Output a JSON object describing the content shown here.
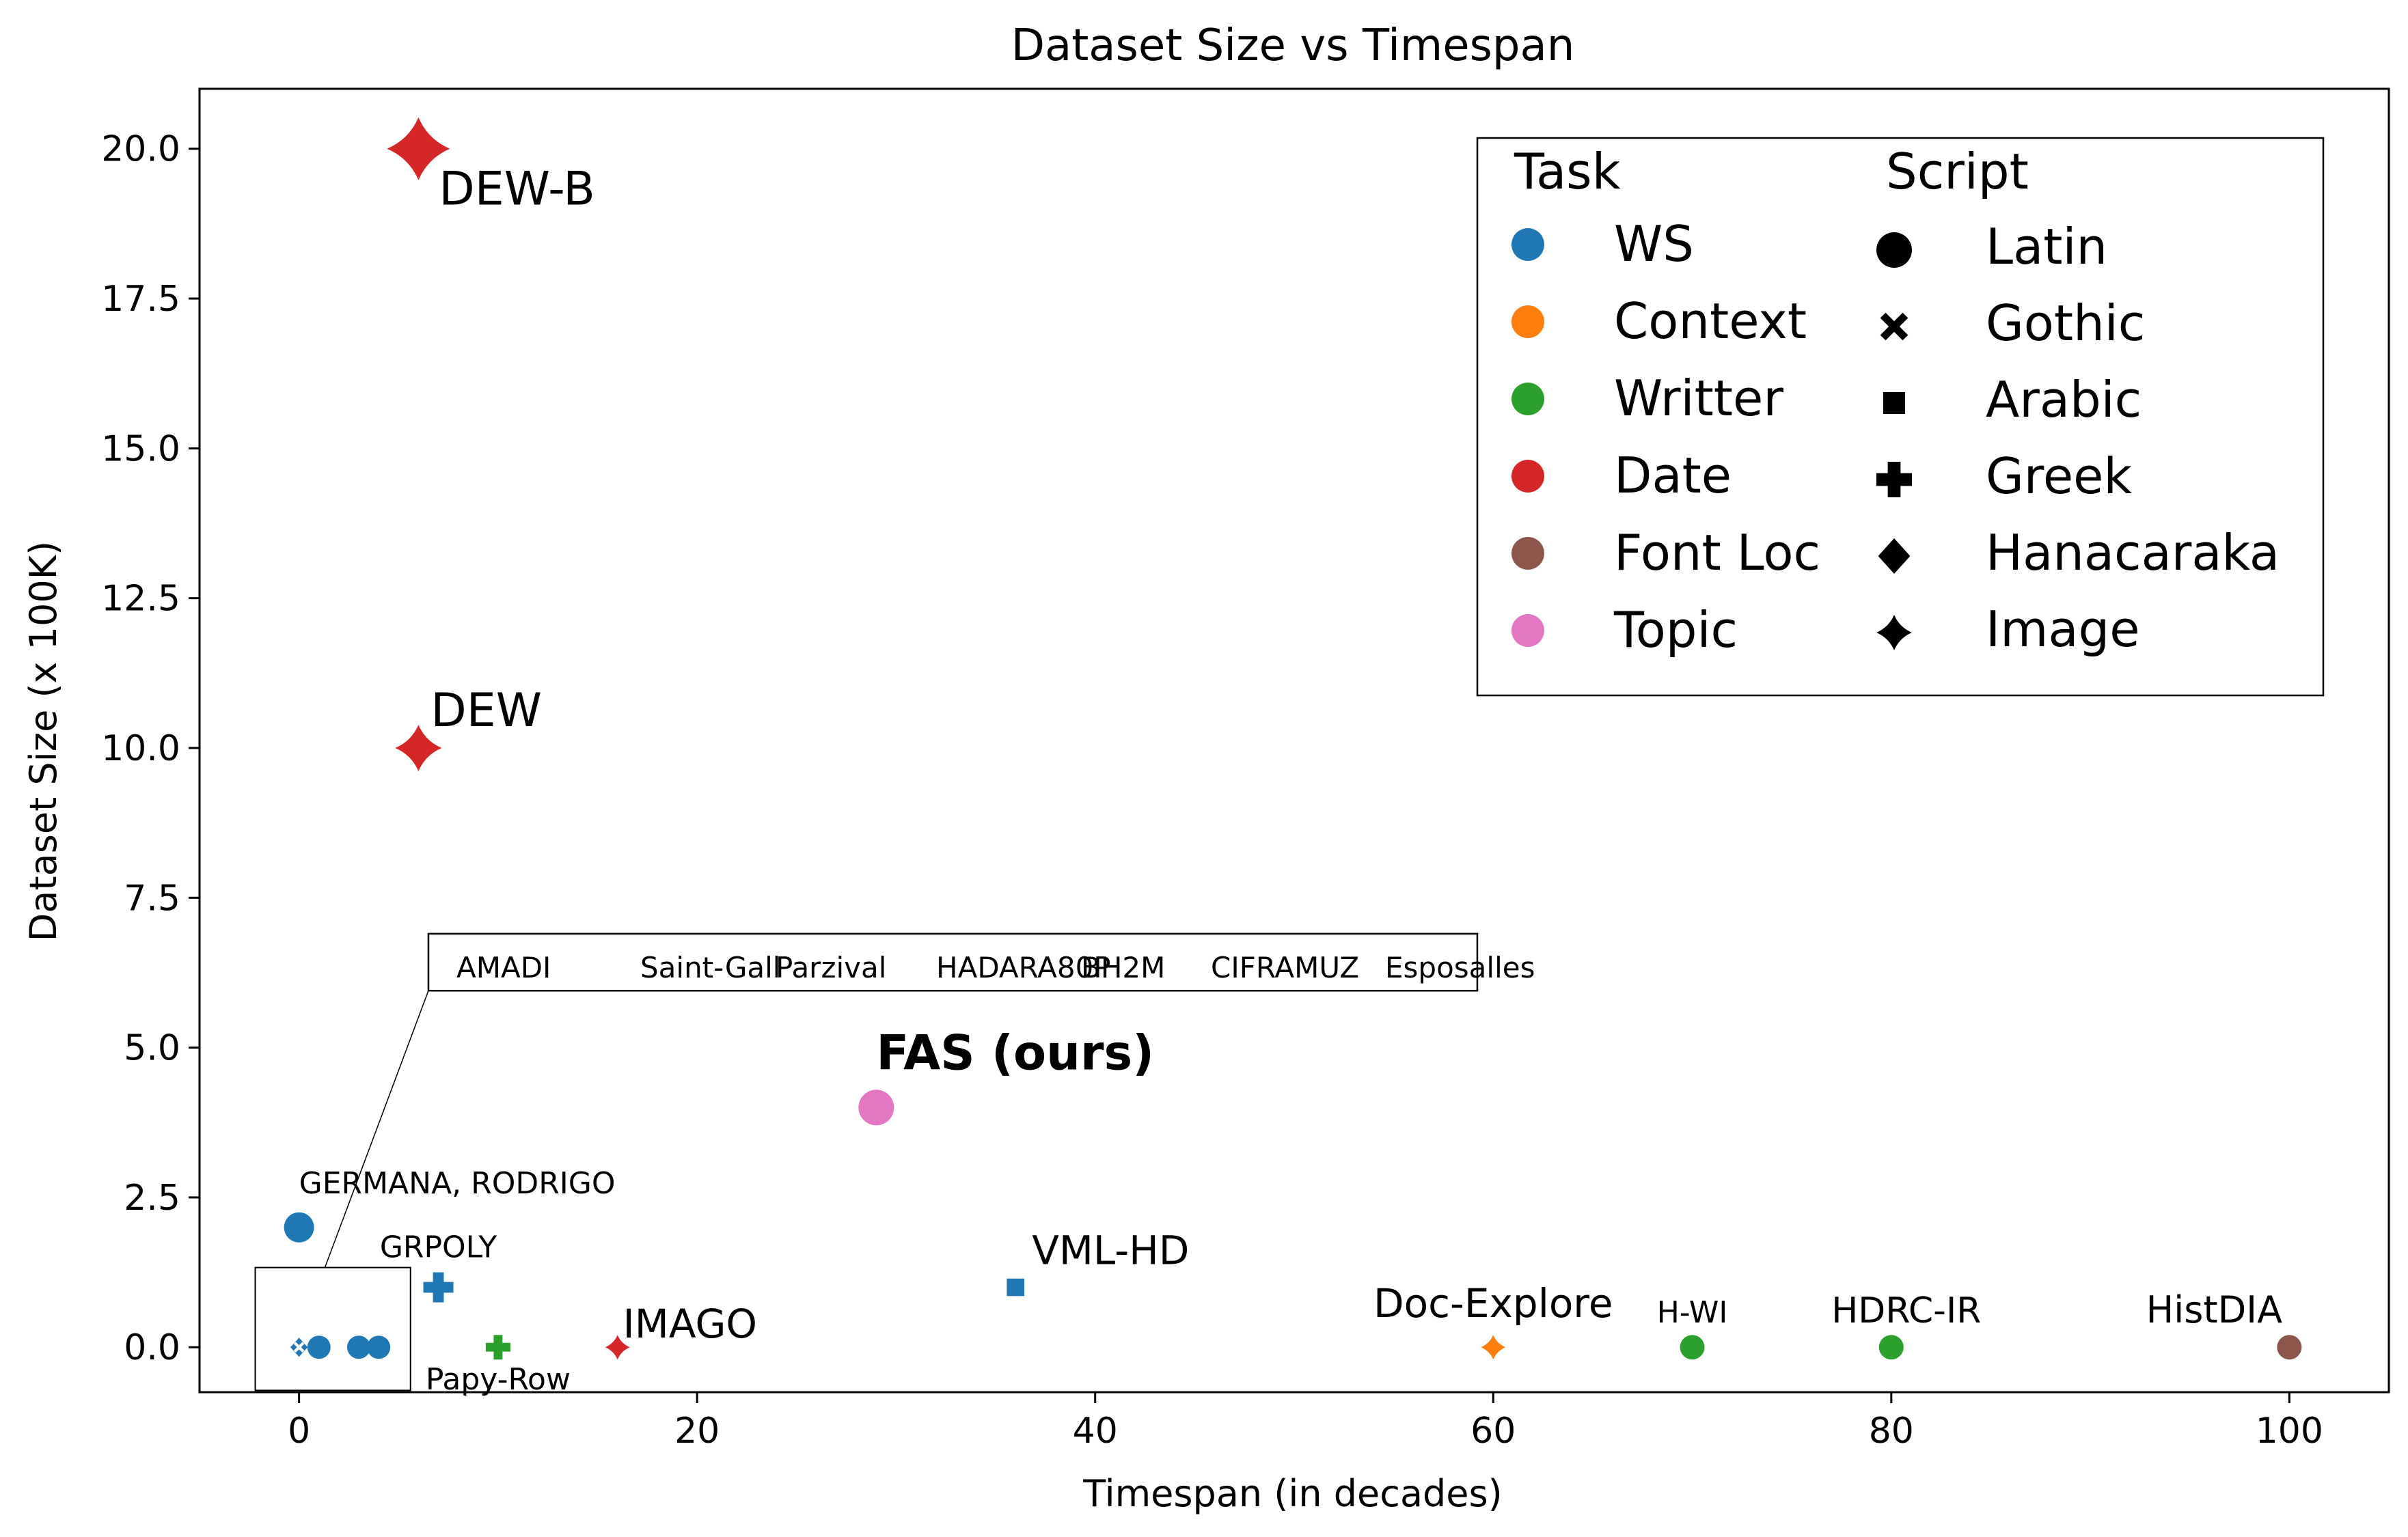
{
  "chart_data": {
    "type": "scatter",
    "title": "Dataset Size vs Timespan",
    "xlabel": "Timespan (in decades)",
    "ylabel": "Dataset Size (x 100K)",
    "xlim": [
      -5,
      105
    ],
    "ylim": [
      -0.75,
      21
    ],
    "xticks": [
      0,
      20,
      40,
      60,
      80,
      100
    ],
    "yticks": [
      0.0,
      2.5,
      5.0,
      7.5,
      10.0,
      12.5,
      15.0,
      17.5,
      20.0
    ],
    "xtick_labels": [
      "0",
      "20",
      "40",
      "60",
      "80",
      "100"
    ],
    "ytick_labels": [
      "0.0",
      "2.5",
      "5.0",
      "7.5",
      "10.0",
      "12.5",
      "15.0",
      "17.5",
      "20.0"
    ],
    "grid": false,
    "colors": {
      "WS": "#1f77b4",
      "Context": "#ff7f0e",
      "Writter": "#2ca02c",
      "Date": "#d62728",
      "Font Loc": "#8c564b",
      "Topic": "#e377c2"
    },
    "points": [
      {
        "label": "DEW-B",
        "x": 6,
        "y": 20,
        "task": "Date",
        "script": "Image"
      },
      {
        "label": "DEW",
        "x": 6,
        "y": 10,
        "task": "Date",
        "script": "Image"
      },
      {
        "label": "FAS (ours)",
        "x": 29,
        "y": 4,
        "task": "Topic",
        "script": "Latin"
      },
      {
        "label": "GERMANA, RODRIGO",
        "x": 0,
        "y": 2,
        "task": "WS",
        "script": "Latin"
      },
      {
        "label": "GRPOLY",
        "x": 7,
        "y": 1,
        "task": "WS",
        "script": "Greek"
      },
      {
        "label": "VML-HD",
        "x": 36,
        "y": 1,
        "task": "WS",
        "script": "Arabic"
      },
      {
        "label": "Papy-Row",
        "x": 10,
        "y": 0,
        "task": "Writter",
        "script": "Greek"
      },
      {
        "label": "IMAGO",
        "x": 16,
        "y": 0,
        "task": "Date",
        "script": "Image"
      },
      {
        "label": "Doc-Explore",
        "x": 60,
        "y": 0,
        "task": "Context",
        "script": "Image"
      },
      {
        "label": "H-WI",
        "x": 70,
        "y": 0,
        "task": "Writter",
        "script": "Latin"
      },
      {
        "label": "HDRC-IR",
        "x": 80,
        "y": 0,
        "task": "Writter",
        "script": "Latin"
      },
      {
        "label": "HistDIA",
        "x": 100,
        "y": 0,
        "task": "Font Loc",
        "script": "Latin"
      }
    ],
    "cluster": {
      "names": [
        "AMADI",
        "Saint-Gall",
        "Parzival",
        "HADARA80P",
        "BH2M",
        "CIFRAMUZ",
        "Esposalles"
      ],
      "points": [
        {
          "x": 0,
          "y": 0,
          "task": "WS",
          "script": "Hanacaraka"
        },
        {
          "x": 0,
          "y": 0,
          "task": "WS",
          "script": "Gothic"
        },
        {
          "x": 1,
          "y": 0,
          "task": "WS",
          "script": "Latin"
        },
        {
          "x": 3,
          "y": 0,
          "task": "WS",
          "script": "Latin"
        },
        {
          "x": 4,
          "y": 0,
          "task": "WS",
          "script": "Latin"
        }
      ]
    },
    "legend": {
      "placement": "top-right",
      "task_title": "Task",
      "script_title": "Script",
      "tasks": [
        {
          "name": "WS",
          "color": "#1f77b4"
        },
        {
          "name": "Context",
          "color": "#ff7f0e"
        },
        {
          "name": "Writter",
          "color": "#2ca02c"
        },
        {
          "name": "Date",
          "color": "#d62728"
        },
        {
          "name": "Font Loc",
          "color": "#8c564b"
        },
        {
          "name": "Topic",
          "color": "#e377c2"
        }
      ],
      "scripts": [
        {
          "name": "Latin",
          "marker": "circle"
        },
        {
          "name": "Gothic",
          "marker": "x"
        },
        {
          "name": "Arabic",
          "marker": "square"
        },
        {
          "name": "Greek",
          "marker": "plus"
        },
        {
          "name": "Hanacaraka",
          "marker": "diamond"
        },
        {
          "name": "Image",
          "marker": "star4"
        }
      ]
    }
  }
}
